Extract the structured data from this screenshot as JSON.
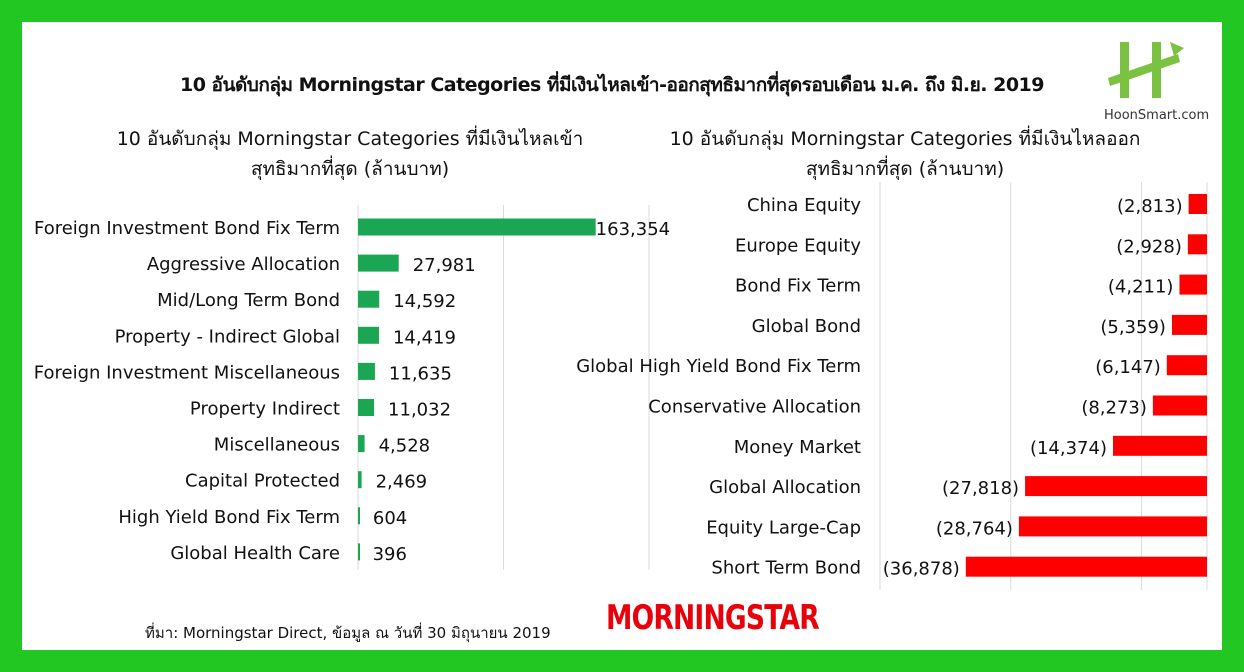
{
  "title": "10 อันดับกลุ่ม Morningstar Categories ที่มีเงินไหลเข้า-ออกสุทธิมากที่สุดรอบเดือน ม.ค. ถึง มิ.ย. 2019",
  "brand": {
    "logo_text": "HoonSmart.com",
    "logo_color": "#7cc242"
  },
  "source": "ที่มา: Morningstar Direct, ข้อมูล ณ วันที่ 30 มิถุนายน 2019",
  "source_logo": "MORNINGSTAR",
  "colors": {
    "background": "#22c722",
    "inflow": "#1aa653",
    "outflow": "#ff0000"
  },
  "chart_data": [
    {
      "type": "bar",
      "orientation": "horizontal",
      "title_line1": "10 อันดับกลุ่ม Morningstar Categories ที่มีเงินไหลเข้า",
      "title_line2": "สุทธิมากที่สุด (ล้านบาท)",
      "xlim": [
        0,
        200000
      ],
      "grid": true,
      "categories": [
        "Foreign Investment Bond Fix Term",
        "Aggressive Allocation",
        "Mid/Long Term Bond",
        "Property - Indirect Global",
        "Foreign Investment Miscellaneous",
        "Property Indirect",
        "Miscellaneous",
        "Capital Protected",
        "High Yield Bond Fix Term",
        "Global Health Care"
      ],
      "values": [
        163354,
        27981,
        14592,
        14419,
        11635,
        11032,
        4528,
        2469,
        604,
        396
      ],
      "labels": [
        "163,354",
        "27,981",
        "14,592",
        "14,419",
        "11,635",
        "11,032",
        "4,528",
        "2,469",
        "604",
        "396"
      ]
    },
    {
      "type": "bar",
      "orientation": "horizontal",
      "title_line1": "10 อันดับกลุ่ม Morningstar Categories ที่มีเงินไหลออก",
      "title_line2": "สุทธิมากที่สุด (ล้านบาท)",
      "xlim": [
        -50000,
        0
      ],
      "grid": true,
      "categories": [
        "China Equity",
        "Europe Equity",
        "Bond Fix Term",
        "Global Bond",
        "Global High Yield Bond Fix Term",
        "Conservative Allocation",
        "Money Market",
        "Global Allocation",
        "Equity Large-Cap",
        "Short Term Bond"
      ],
      "values": [
        -2813,
        -2928,
        -4211,
        -5359,
        -6147,
        -8273,
        -14374,
        -27818,
        -28764,
        -36878
      ],
      "labels": [
        "(2,813)",
        "(2,928)",
        "(4,211)",
        "(5,359)",
        "(6,147)",
        "(8,273)",
        "(14,374)",
        "(27,818)",
        "(28,764)",
        "(36,878)"
      ]
    }
  ]
}
